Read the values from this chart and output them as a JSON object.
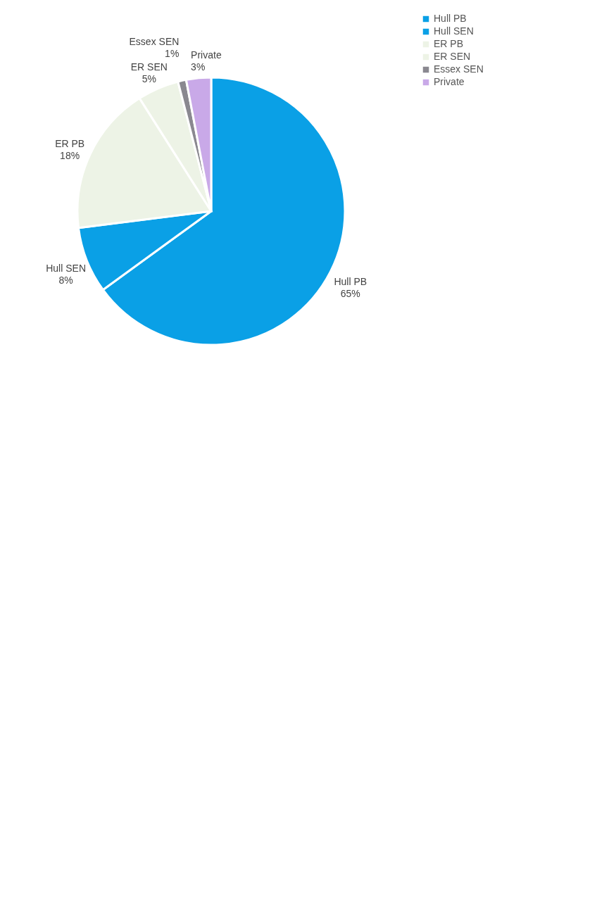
{
  "chart_data": {
    "type": "pie",
    "categories": [
      "Hull PB",
      "Hull SEN",
      "ER PB",
      "ER SEN",
      "Essex SEN",
      "Private"
    ],
    "values": [
      65,
      8,
      18,
      5,
      1,
      3
    ],
    "colors": [
      "#0aa0e6",
      "#0aa0e6",
      "#edf3e6",
      "#edf3e6",
      "#8a8890",
      "#c9a9e8"
    ],
    "value_labels": [
      "65%",
      "8%",
      "18%",
      "5%",
      "1%",
      "3%"
    ],
    "legend": "top right"
  }
}
